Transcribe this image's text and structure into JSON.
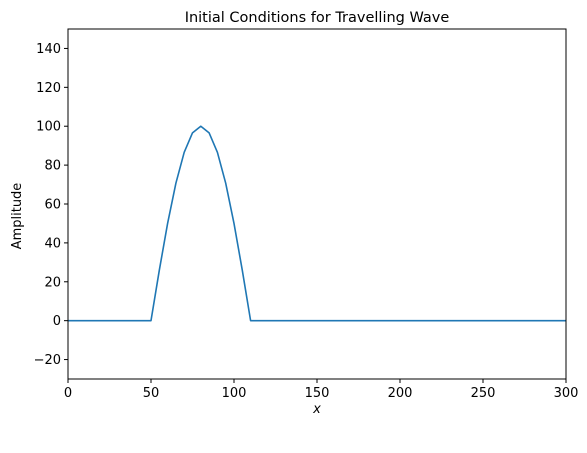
{
  "chart_data": {
    "type": "line",
    "title": "Initial Conditions for Travelling Wave",
    "xlabel": "x",
    "ylabel": "Amplitude",
    "xlim": [
      0,
      300
    ],
    "ylim": [
      -30,
      150
    ],
    "xticks": [
      0,
      50,
      100,
      150,
      200,
      250,
      300
    ],
    "yticks": [
      -20,
      0,
      20,
      40,
      60,
      80,
      100,
      120,
      140
    ],
    "grid": false,
    "legend": "none",
    "series": [
      {
        "color": "#1f77b4",
        "x": [
          0,
          50,
          55,
          60,
          65,
          70,
          75,
          80,
          85,
          90,
          95,
          100,
          105,
          110,
          300
        ],
        "y": [
          0,
          0,
          25.9,
          50,
          70.7,
          86.6,
          96.6,
          100,
          96.6,
          86.6,
          70.7,
          50,
          25.9,
          0,
          0
        ]
      }
    ]
  }
}
